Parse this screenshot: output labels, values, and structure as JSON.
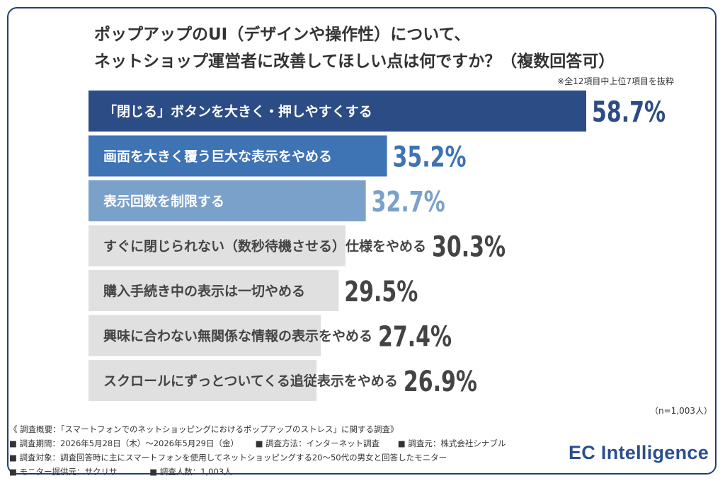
{
  "title_line1": "ポップアップのUI（デザインや操作性）について、",
  "title_line2": "ネットショップ運営者に改善してほしい点は何ですか？（複数回答可）",
  "note": "※全12項目中上位7項目を抜粋",
  "sample_note": "（n=1,003人）",
  "summary": {
    "overview": "《 調査概要：「スマートフォンでのネットショッピングにおけるポップアップのストレス」に関する調査》",
    "period": "■ 調査期間：2026年5月28日（木）〜2026年5月29日（金）",
    "method": "■ 調査方法：インターネット調査",
    "source": "■ 調査元：株式会社シナブル",
    "target": "■ 調査対象：調査回答時に主にスマートフォンを使用してネットショッピングする20〜50代の男女と回答したモニター",
    "provider": "■ モニター提供元：サクリサ",
    "count": "■ 調査人数：1,003人"
  },
  "logo": "EC Intelligence",
  "chart_data": {
    "type": "bar",
    "orientation": "horizontal",
    "categories": [
      "「閉じる」ボタンを大きく・押しやすくする",
      "画面を大きく覆う巨大な表示をやめる",
      "表示回数を制限する",
      "すぐに閉じられない（数秒待機させる）仕様をやめる",
      "購入手続き中の表示は一切やめる",
      "興味に合わない無関係な情報の表示をやめる",
      "スクロールにずっとついてくる追従表示をやめる"
    ],
    "values": [
      58.7,
      35.2,
      32.7,
      30.3,
      29.5,
      27.4,
      26.9
    ],
    "value_labels": [
      "58.7%",
      "35.2%",
      "32.7%",
      "30.3%",
      "29.5%",
      "27.4%",
      "26.9%"
    ],
    "bar_colors": [
      "#2c4c86",
      "#3e73b4",
      "#7aa1c9",
      "#e0e0e0",
      "#e0e0e0",
      "#e0e0e0",
      "#e0e0e0"
    ],
    "label_colors": [
      "#ffffff",
      "#ffffff",
      "#ffffff",
      "#444444",
      "#444444",
      "#444444",
      "#444444"
    ],
    "value_colors": [
      "#2c4c86",
      "#3e73b4",
      "#7aa1c9",
      "#444444",
      "#444444",
      "#444444",
      "#444444"
    ],
    "unit": "%"
  }
}
